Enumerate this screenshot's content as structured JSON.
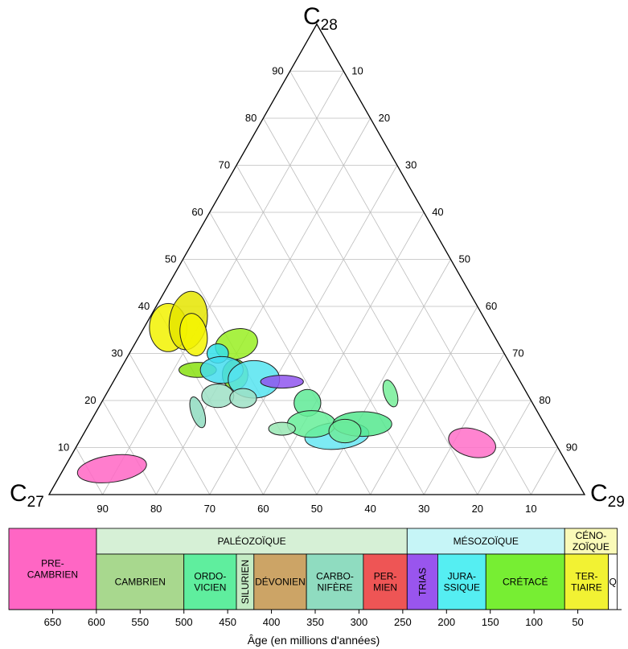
{
  "chart_data": [
    {
      "type": "ternary",
      "vertices": {
        "top": {
          "base": "C",
          "sub": "28"
        },
        "left": {
          "base": "C",
          "sub": "27"
        },
        "right": {
          "base": "C",
          "sub": "29"
        }
      },
      "left_edge_ticks": [
        "90",
        "80",
        "70",
        "60",
        "50",
        "40",
        "30",
        "20",
        "10"
      ],
      "right_edge_ticks": [
        "10",
        "20",
        "30",
        "40",
        "50",
        "60",
        "70",
        "80",
        "90"
      ],
      "bottom_edge_ticks": [
        "90",
        "80",
        "70",
        "60",
        "50",
        "40",
        "30",
        "20",
        "10"
      ],
      "grid": true,
      "regions": [
        {
          "period": "PRECAMBRIEN",
          "color": "#ff66c4",
          "c27": 85.5,
          "c28": 5.5,
          "w": 6.5,
          "h": 2.5,
          "rot": -8
        },
        {
          "period": "CRÉTACÉ",
          "color": "#f2f200",
          "c27": 60.0,
          "c28": 35.5,
          "w": 3.5,
          "h": 4.5,
          "rot": 0
        },
        {
          "period": "CRÉTACÉ",
          "color": "#e5e500",
          "c27": 55.5,
          "c28": 37.0,
          "w": 3.5,
          "h": 5.5,
          "rot": 10
        },
        {
          "period": "CRÉTACÉ",
          "color": "#f5f500",
          "c27": 56.0,
          "c28": 34.0,
          "w": 2.5,
          "h": 4.0,
          "rot": -10
        },
        {
          "period": "CRÉTACÉ",
          "color": "#99ee22",
          "c27": 49.0,
          "c28": 32.0,
          "w": 4.0,
          "h": 2.8,
          "rot": -15
        },
        {
          "period": "CRÉTACÉ",
          "color": "#88e011",
          "c27": 59.0,
          "c28": 26.5,
          "w": 3.5,
          "h": 1.4,
          "rot": 0
        },
        {
          "period": "CRÉTACÉ",
          "color": "#77dd22",
          "c27": 52.5,
          "c28": 25.5,
          "w": 2.4,
          "h": 2.8,
          "rot": 0
        },
        {
          "period": "JURASSIQUE",
          "color": "#33e0ea",
          "c27": 53.5,
          "c28": 30.0,
          "w": 2.0,
          "h": 1.8,
          "rot": 0
        },
        {
          "period": "JURASSIQUE",
          "color": "#44ddee",
          "c27": 54.5,
          "c28": 26.5,
          "w": 4.0,
          "h": 2.5,
          "rot": 0
        },
        {
          "period": "JURASSIQUE",
          "color": "#55e4f0",
          "c27": 49.5,
          "c28": 24.5,
          "w": 4.8,
          "h": 3.5,
          "rot": 0
        },
        {
          "period": "JURASSIQUE",
          "color": "#66e6f2",
          "c27": 40.0,
          "c28": 12.5,
          "w": 6.0,
          "h": 2.5,
          "rot": -5
        },
        {
          "period": "TRIAS",
          "color": "#8f55ee",
          "c27": 44.5,
          "c28": 24.0,
          "w": 4.0,
          "h": 1.2,
          "rot": 0
        },
        {
          "period": "CARBONIFÈRE",
          "color": "#8fdcc0",
          "c27": 63.5,
          "c28": 17.5,
          "w": 1.2,
          "h": 3.0,
          "rot": -18
        },
        {
          "period": "CARBONIFÈRE",
          "color": "#9ee0c6",
          "c27": 58.0,
          "c28": 21.0,
          "w": 3.0,
          "h": 2.2,
          "rot": 0
        },
        {
          "period": "CARBONIFÈRE",
          "color": "#9ee0c6",
          "c27": 53.5,
          "c28": 20.5,
          "w": 2.5,
          "h": 1.8,
          "rot": 0
        },
        {
          "period": "ORDOVICIEN",
          "color": "#5fea96",
          "c27": 42.0,
          "c28": 19.5,
          "w": 2.5,
          "h": 2.5,
          "rot": 0
        },
        {
          "period": "ORDOVICIEN",
          "color": "#66ee99",
          "c27": 43.5,
          "c28": 15.0,
          "w": 4.5,
          "h": 2.5,
          "rot": 0
        },
        {
          "period": "ORDOVICIEN",
          "color": "#55e88e",
          "c27": 34.0,
          "c28": 15.0,
          "w": 5.5,
          "h": 2.3,
          "rot": 0
        },
        {
          "period": "ORDOVICIEN",
          "color": "#6deb9b",
          "c27": 38.0,
          "c28": 13.5,
          "w": 3.0,
          "h": 2.2,
          "rot": 0
        },
        {
          "period": "ORDOVICIEN",
          "color": "#77ee99",
          "c27": 25.5,
          "c28": 21.5,
          "w": 1.2,
          "h": 2.6,
          "rot": -18
        },
        {
          "period": "ORDOVICIEN",
          "color": "#99e8b4",
          "c27": 49.5,
          "c28": 14.0,
          "w": 2.5,
          "h": 1.2,
          "rot": 0
        },
        {
          "period": "PRECAMBRIEN",
          "color": "#ff6fc8",
          "c27": 15.5,
          "c28": 11.0,
          "w": 4.5,
          "h": 2.6,
          "rot": 15
        }
      ]
    },
    {
      "type": "timeline",
      "xlabel": "Âge (en millions d'années)",
      "xlim": [
        700,
        0
      ],
      "ticks": [
        "650",
        "600",
        "550",
        "500",
        "450",
        "400",
        "350",
        "300",
        "250",
        "200",
        "150",
        "100",
        "50"
      ],
      "tick_values": [
        650,
        600,
        550,
        500,
        450,
        400,
        350,
        300,
        250,
        200,
        150,
        100,
        50
      ],
      "eras": [
        {
          "label": [
            "PALÉOZOÏQUE"
          ],
          "start": 600,
          "end": 245,
          "color": "#d6f0d6"
        },
        {
          "label": [
            "MÉSOZOÏQUE"
          ],
          "start": 245,
          "end": 65,
          "color": "#c6f5f7"
        },
        {
          "label": [
            "CÉNO-",
            "ZOÏQUE"
          ],
          "start": 65,
          "end": 5,
          "color": "#fafab8"
        }
      ],
      "periods": [
        {
          "label": [
            "PRE-",
            "CAMBRIEN"
          ],
          "start": 700,
          "end": 600,
          "color": "#ff66c4",
          "full": true
        },
        {
          "label": [
            "CAMBRIEN"
          ],
          "start": 600,
          "end": 500,
          "color": "#a8d88e"
        },
        {
          "label": [
            "ORDO-",
            "VICIEN"
          ],
          "start": 500,
          "end": 440,
          "color": "#5fee9e"
        },
        {
          "label": [
            "SILURIEN"
          ],
          "start": 440,
          "end": 420,
          "color": "#c4ebc4",
          "vertical": true
        },
        {
          "label": [
            "DÉVONIEN"
          ],
          "start": 420,
          "end": 360,
          "color": "#cca466"
        },
        {
          "label": [
            "CARBO-",
            "NIFÈRE"
          ],
          "start": 360,
          "end": 295,
          "color": "#8fdcc0"
        },
        {
          "label": [
            "PER-",
            "MIEN"
          ],
          "start": 295,
          "end": 245,
          "color": "#ee5555"
        },
        {
          "label": [
            "TRIAS"
          ],
          "start": 245,
          "end": 210,
          "color": "#9955ee",
          "vertical": true
        },
        {
          "label": [
            "JURA-",
            "SSIQUE"
          ],
          "start": 210,
          "end": 155,
          "color": "#55eef2"
        },
        {
          "label": [
            "CRÉTACÉ"
          ],
          "start": 155,
          "end": 65,
          "color": "#77ee33"
        },
        {
          "label": [
            "TER-",
            "TIAIRE"
          ],
          "start": 65,
          "end": 15,
          "color": "#f2f233"
        },
        {
          "label": [
            "Q"
          ],
          "start": 15,
          "end": 5,
          "color": "#ffffff"
        }
      ]
    }
  ]
}
